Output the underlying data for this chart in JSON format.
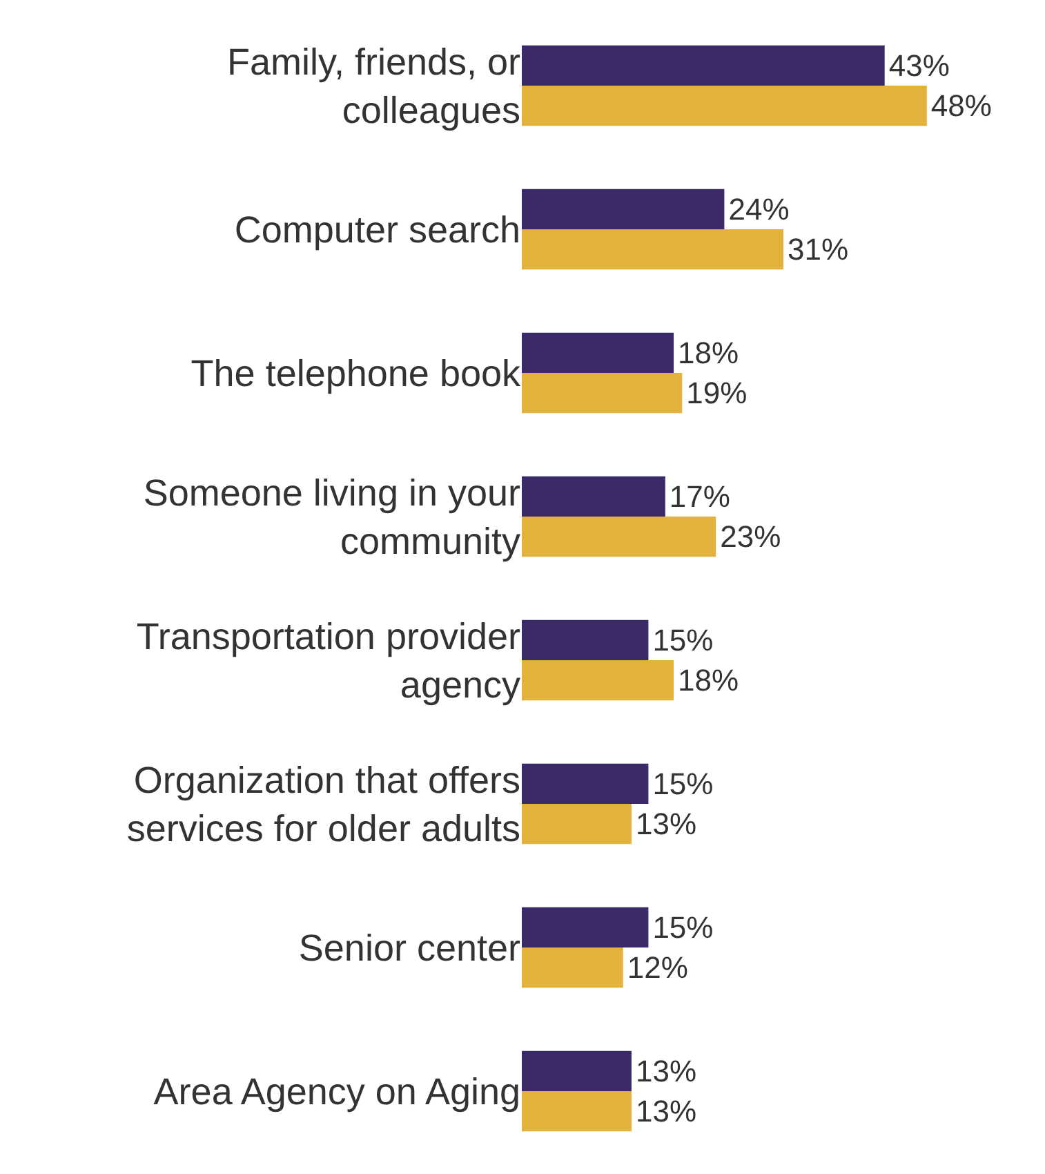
{
  "chart_data": {
    "type": "bar",
    "orientation": "horizontal",
    "categories": [
      "Family, friends, or\ncolleagues",
      "Computer search",
      "The telephone book",
      "Someone living in your\ncommunity",
      "Transportation provider\nagency",
      "Organization that offers\nservices for older adults",
      "Senior center",
      "Area Agency on Aging"
    ],
    "series": [
      {
        "color": "#3c2a68",
        "values": [
          43,
          24,
          18,
          17,
          15,
          15,
          15,
          13
        ],
        "value_labels": [
          "43%",
          "24%",
          "18%",
          "17%",
          "15%",
          "15%",
          "15%",
          "13%"
        ]
      },
      {
        "color": "#e3b23c",
        "values": [
          48,
          31,
          19,
          23,
          18,
          13,
          12,
          13
        ],
        "value_labels": [
          "48%",
          "31%",
          "19%",
          "23%",
          "18%",
          "13%",
          "12%",
          "13%"
        ]
      }
    ],
    "xlim": [
      0,
      62
    ],
    "grid": false
  }
}
